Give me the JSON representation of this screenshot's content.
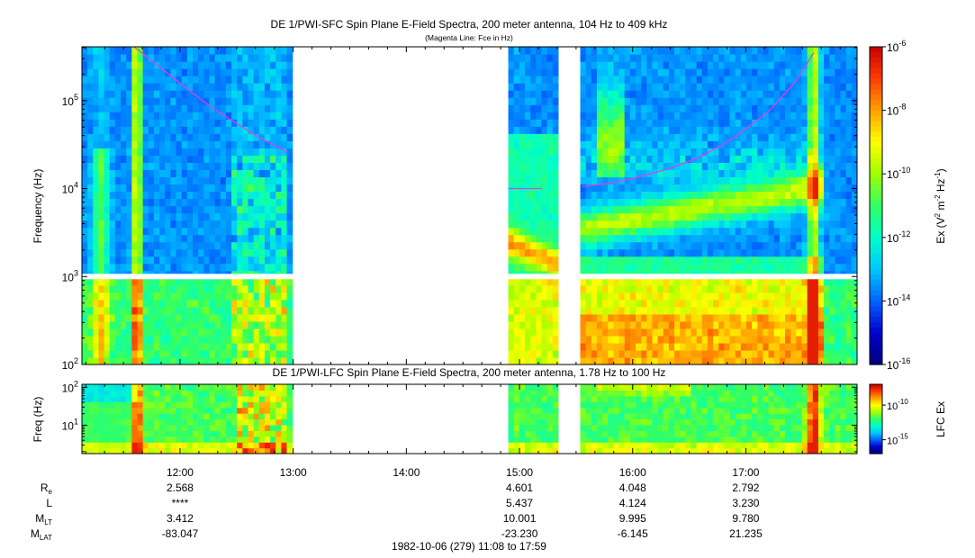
{
  "colors": {
    "cmap": [
      "#000080",
      "#0000cd",
      "#0064ff",
      "#00c8ff",
      "#00ffc8",
      "#32ff64",
      "#a0ff00",
      "#ffff00",
      "#ffa000",
      "#ff3c00",
      "#c80000"
    ],
    "fce": "#e040e0"
  },
  "chart_data": [
    {
      "type": "heatmap",
      "title": "DE 1/PWI-SFC  Spin Plane E-Field Spectra, 200 meter antenna, 104 Hz to 409 kHz",
      "subtitle": "(Magenta Line: Fce in Hz)",
      "ylabel": "Frequency (Hz)",
      "yscale": "log",
      "ylim": [
        100,
        409000
      ],
      "y_ticks": [
        {
          "value": 100,
          "base": "10",
          "exp": "2"
        },
        {
          "value": 1000,
          "base": "10",
          "exp": "3"
        },
        {
          "value": 10000,
          "base": "10",
          "exp": "4"
        },
        {
          "value": 100000,
          "base": "10",
          "exp": "5"
        }
      ],
      "xlim_hours": [
        11.133,
        17.983
      ],
      "data_gaps_hours": [
        [
          13.0,
          14.9
        ],
        [
          15.35,
          15.55
        ]
      ],
      "colorbar": {
        "label_main": "Ex (V",
        "label_sup1": "2",
        "label_mid": " m",
        "label_sup2": "-2",
        "label_hz": " Hz",
        "label_sup3": "-1",
        "label_end": ")",
        "scale": "log",
        "range": [
          1e-16,
          1e-06
        ],
        "ticks": [
          {
            "value": 1e-06,
            "base": "10",
            "exp": "-6"
          },
          {
            "value": 1e-08,
            "base": "10",
            "exp": "-8"
          },
          {
            "value": 1e-10,
            "base": "10",
            "exp": "-10"
          },
          {
            "value": 1e-12,
            "base": "10",
            "exp": "-12"
          },
          {
            "value": 1e-14,
            "base": "10",
            "exp": "-14"
          },
          {
            "value": 1e-16,
            "base": "10",
            "exp": "-16"
          }
        ]
      },
      "fce_line": {
        "name": "Fce",
        "segments": [
          {
            "t": [
              11.55,
              11.7,
              11.9,
              12.1,
              12.3,
              12.5,
              12.7,
              12.95
            ],
            "f": [
              450000,
              320000,
              200000,
              125000,
              80000,
              55000,
              38000,
              26000
            ]
          },
          {
            "t": [
              14.9,
              15.2
            ],
            "f": [
              10000,
              10000
            ]
          },
          {
            "t": [
              15.55,
              15.8,
              16.0,
              16.3,
              16.6,
              16.9,
              17.2,
              17.45,
              17.6
            ],
            "f": [
              10500,
              11500,
              13000,
              16500,
              23000,
              38000,
              75000,
              170000,
              350000
            ]
          }
        ]
      }
    },
    {
      "type": "heatmap",
      "title": "DE 1/PWI-LFC  Spin Plane E-Field Spectra, 200 meter antenna, 1.78 Hz to 100 Hz",
      "ylabel": "Freq (Hz)",
      "yscale": "log",
      "ylim": [
        1.78,
        120
      ],
      "y_ticks": [
        {
          "value": 10,
          "base": "10",
          "exp": "1"
        },
        {
          "value": 100,
          "base": "10",
          "exp": "2"
        }
      ],
      "xlim_hours": [
        11.133,
        17.983
      ],
      "data_gaps_hours": [
        [
          13.0,
          14.9
        ],
        [
          15.35,
          15.55
        ]
      ],
      "colorbar": {
        "label": "LFC Ex",
        "scale": "log",
        "ticks": [
          {
            "value": 1e-10,
            "base": "10",
            "exp": "-10"
          },
          {
            "value": 1e-15,
            "base": "10",
            "exp": "-15"
          }
        ]
      }
    }
  ],
  "x_axis": {
    "ticks": [
      {
        "t": 12,
        "label": "12:00"
      },
      {
        "t": 13,
        "label": "13:00"
      },
      {
        "t": 14,
        "label": "14:00"
      },
      {
        "t": 15,
        "label": "15:00"
      },
      {
        "t": 16,
        "label": "16:00"
      },
      {
        "t": 17,
        "label": "17:00"
      }
    ],
    "caption": "1982-10-06 (279) 11:08 to 17:59"
  },
  "ephemeris": {
    "rows": [
      {
        "name": "R",
        "sub": "e",
        "values": [
          "2.568",
          "",
          "",
          "4.601",
          "4.048",
          "2.792"
        ]
      },
      {
        "name": "L",
        "sub": "",
        "values": [
          "****",
          "",
          "",
          "5.437",
          "4.124",
          "3.230"
        ]
      },
      {
        "name": "M",
        "sub": "LT",
        "values": [
          "3.412",
          "",
          "",
          "10.001",
          "9.995",
          "9.780"
        ]
      },
      {
        "name": "M",
        "sub": "LAT",
        "values": [
          "-83.047",
          "",
          "",
          "-23.230",
          "-6.145",
          "21.235"
        ]
      }
    ]
  }
}
